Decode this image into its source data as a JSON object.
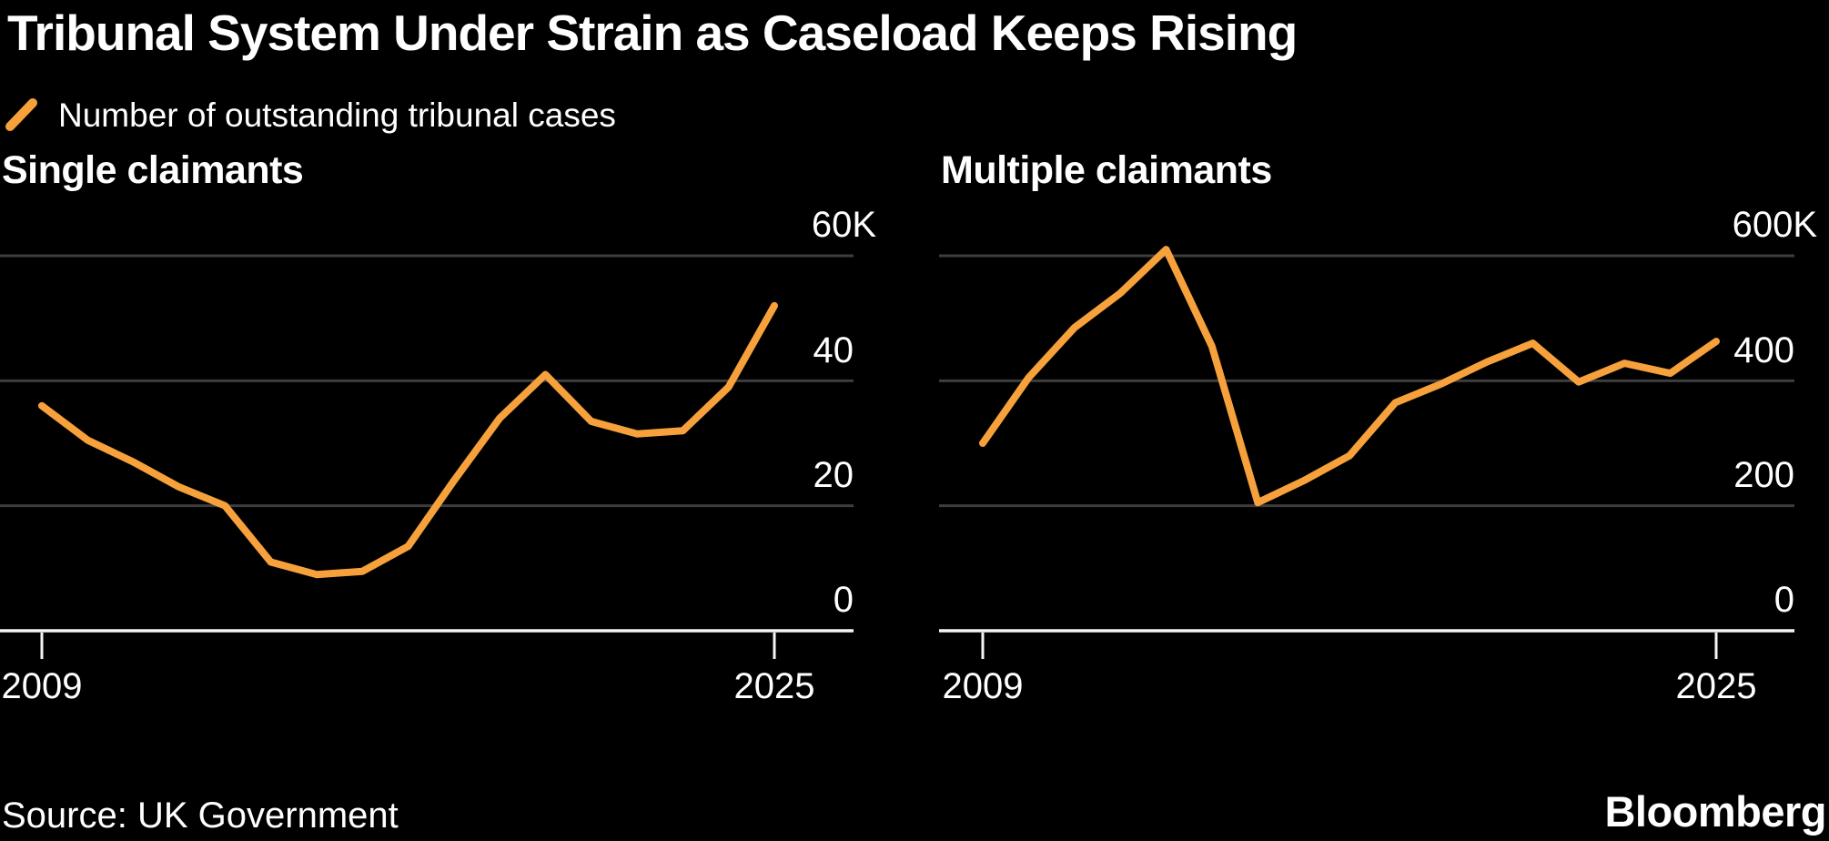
{
  "title": "Tribunal System Under Strain as Caseload Keeps Rising",
  "legend": {
    "label": "Number of outstanding tribunal cases",
    "marker": "orange-diagonal-stroke",
    "marker_color": "#F6A13B"
  },
  "colors": {
    "background": "#000000",
    "text": "#FFFFFF",
    "line": "#F6A13B",
    "gridline": "#3D3D3D",
    "axis": "#F5F5F5"
  },
  "footer": {
    "source": "Source: UK Government",
    "brand": "Bloomberg"
  },
  "chart_data": [
    {
      "type": "line",
      "title": "Single claimants",
      "series_name": "Number of outstanding tribunal cases",
      "units": "thousands of cases",
      "x": [
        2009,
        2010,
        2011,
        2012,
        2013,
        2014,
        2015,
        2016,
        2017,
        2018,
        2019,
        2020,
        2021,
        2022,
        2023,
        2024,
        2025
      ],
      "values": [
        36,
        30.5,
        27,
        23,
        20,
        11,
        9,
        9.5,
        13.5,
        24,
        34,
        41,
        33.5,
        31.5,
        32,
        39,
        52
      ],
      "ylim": [
        0,
        60
      ],
      "grid": "horizontal",
      "legend_position": "top-left",
      "line_color": "#F6A13B",
      "y_ticks": [
        {
          "value": 60,
          "label": "60K"
        },
        {
          "value": 40,
          "label": "40"
        },
        {
          "value": 20,
          "label": "20"
        },
        {
          "value": 0,
          "label": "0"
        }
      ],
      "x_tick_labels": [
        "2009",
        "2025"
      ]
    },
    {
      "type": "line",
      "title": "Multiple claimants",
      "series_name": "Number of outstanding tribunal cases",
      "units": "thousands of cases",
      "x": [
        2009,
        2010,
        2011,
        2012,
        2013,
        2014,
        2015,
        2016,
        2017,
        2018,
        2019,
        2020,
        2021,
        2022,
        2023,
        2024,
        2025
      ],
      "values": [
        300,
        405,
        485,
        540,
        610,
        455,
        205,
        240,
        280,
        365,
        395,
        430,
        460,
        398,
        428,
        412,
        463
      ],
      "ylim": [
        0,
        600
      ],
      "grid": "horizontal",
      "legend_position": "top-left",
      "line_color": "#F6A13B",
      "y_ticks": [
        {
          "value": 600,
          "label": "600K"
        },
        {
          "value": 400,
          "label": "400"
        },
        {
          "value": 200,
          "label": "200"
        },
        {
          "value": 0,
          "label": "0"
        }
      ],
      "x_tick_labels": [
        "2009",
        "2025"
      ]
    }
  ]
}
